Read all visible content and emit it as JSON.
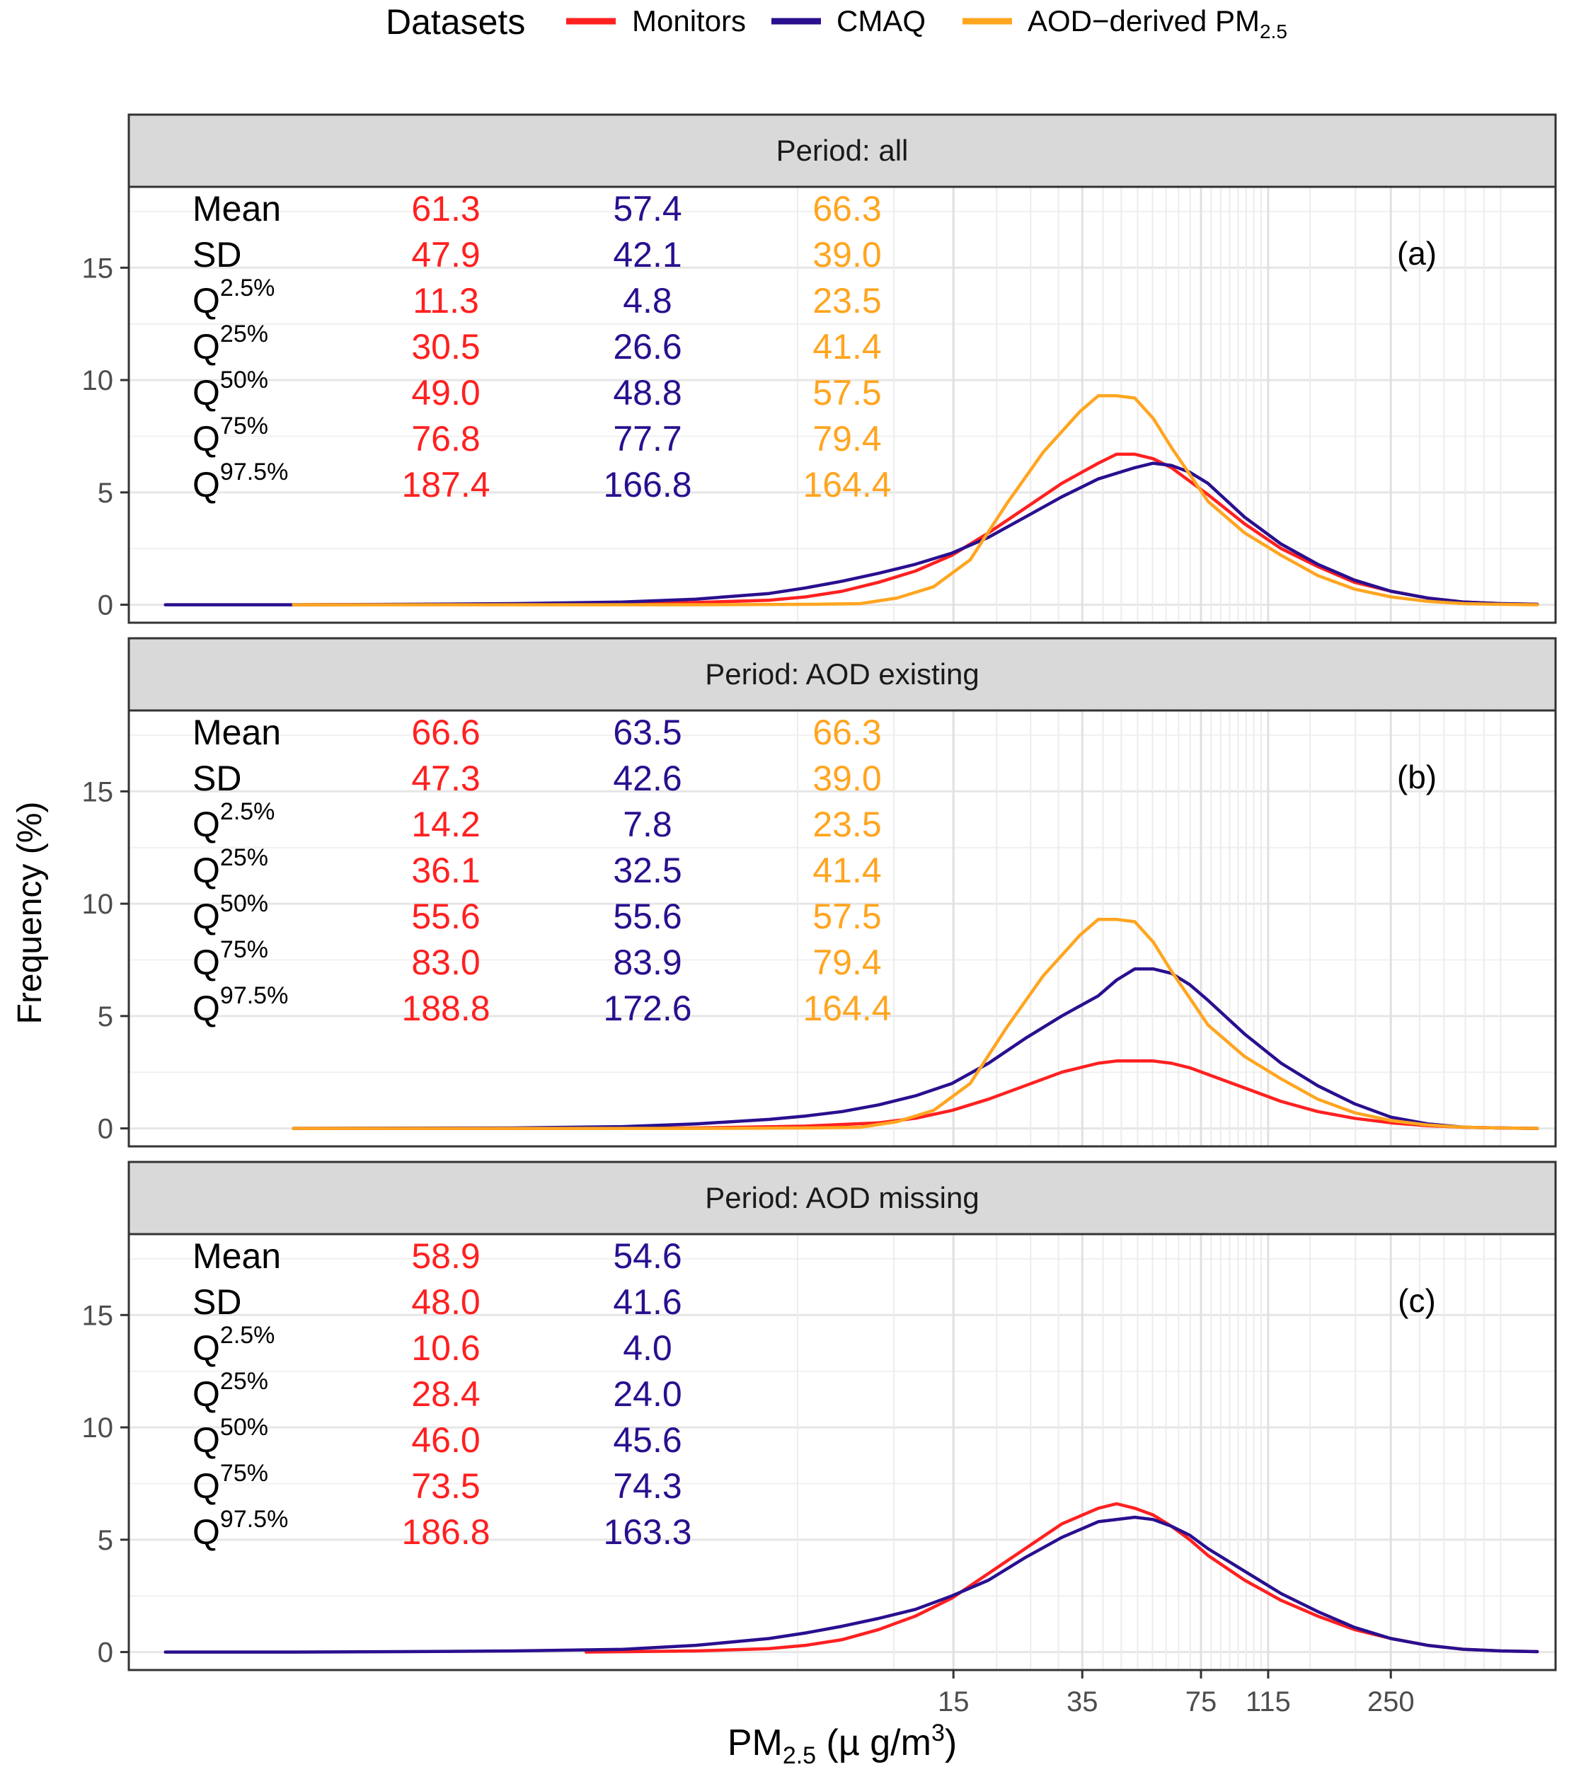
{
  "legend": {
    "title": "Datasets",
    "items": [
      {
        "label": "Monitors",
        "color": "#ff2020"
      },
      {
        "label": "CMAQ",
        "color": "#2a0f8f"
      },
      {
        "label": "AOD−derived PM",
        "sub": "2.5",
        "color": "#ffa520"
      }
    ]
  },
  "axis": {
    "ylabel": "Frequency (%)",
    "xlabel_main": "PM",
    "xlabel_sub": "2.5",
    "xlabel_unit": " (µ g/m",
    "xlabel_sup": "3",
    "xlabel_close": ")",
    "x_ticks": [
      15,
      35,
      75,
      115,
      250
    ],
    "x_tick_labels": [
      "15",
      "35",
      "75",
      "115",
      "250"
    ],
    "x_minor_grid": [
      5,
      10,
      20,
      25,
      30,
      40,
      45,
      50,
      55,
      60,
      65,
      70,
      80,
      85,
      90,
      95,
      100,
      105,
      110,
      150,
      200,
      300,
      350,
      400,
      450,
      500
    ],
    "y_ticks": [
      0,
      5,
      10,
      15
    ],
    "y_tick_labels": [
      "0",
      "5",
      "10",
      "15"
    ],
    "ylim": [
      -0.8,
      18.6
    ],
    "x_scale": "log10(PM2.5 + 1)",
    "x_range_log": [
      -1.05,
      2.85
    ]
  },
  "stat_labels": [
    {
      "base": "Mean",
      "sup": ""
    },
    {
      "base": "SD",
      "sup": ""
    },
    {
      "base": "Q",
      "sup": "2.5%"
    },
    {
      "base": "Q",
      "sup": "25%"
    },
    {
      "base": "Q",
      "sup": "50%"
    },
    {
      "base": "Q",
      "sup": "75%"
    },
    {
      "base": "Q",
      "sup": "97.5%"
    }
  ],
  "chart_data": {
    "type": "line",
    "x_transform": "log10(PM2.5 + 1)",
    "panels": [
      {
        "strip": "Period: all",
        "tag": "(a)",
        "stats": {
          "Monitors": [
            "61.3",
            "47.9",
            "11.3",
            "30.5",
            "49.0",
            "76.8",
            "187.4"
          ],
          "CMAQ": [
            "57.4",
            "42.1",
            "4.8",
            "26.6",
            "48.8",
            "77.7",
            "166.8"
          ],
          "AOD": [
            "66.3",
            "39.0",
            "23.5",
            "41.4",
            "57.5",
            "79.4",
            "164.4"
          ]
        },
        "series": [
          {
            "name": "Monitors",
            "x": [
              -0.6,
              -0.2,
              0.2,
              0.5,
              0.7,
              0.8,
              0.9,
              1.0,
              1.1,
              1.2,
              1.3,
              1.4,
              1.5,
              1.6,
              1.65,
              1.7,
              1.75,
              1.8,
              1.85,
              1.9,
              2.0,
              2.1,
              2.2,
              2.3,
              2.4,
              2.5,
              2.6,
              2.7,
              2.8
            ],
            "y": [
              0.0,
              0.02,
              0.05,
              0.1,
              0.2,
              0.35,
              0.6,
              1.0,
              1.5,
              2.2,
              3.2,
              4.3,
              5.4,
              6.3,
              6.7,
              6.7,
              6.5,
              6.1,
              5.5,
              4.9,
              3.6,
              2.5,
              1.7,
              1.0,
              0.6,
              0.3,
              0.12,
              0.05,
              0.02
            ]
          },
          {
            "name": "CMAQ",
            "x": [
              -0.95,
              -0.6,
              -0.3,
              0.0,
              0.3,
              0.5,
              0.7,
              0.8,
              0.9,
              1.0,
              1.1,
              1.2,
              1.3,
              1.4,
              1.5,
              1.6,
              1.7,
              1.75,
              1.8,
              1.85,
              1.9,
              2.0,
              2.1,
              2.2,
              2.3,
              2.4,
              2.5,
              2.6,
              2.7,
              2.8
            ],
            "y": [
              0.0,
              0.0,
              0.02,
              0.05,
              0.12,
              0.25,
              0.5,
              0.75,
              1.05,
              1.4,
              1.8,
              2.3,
              3.0,
              3.9,
              4.8,
              5.6,
              6.1,
              6.3,
              6.2,
              5.9,
              5.4,
              3.9,
              2.7,
              1.8,
              1.1,
              0.6,
              0.3,
              0.12,
              0.05,
              0.02
            ]
          },
          {
            "name": "AOD",
            "x": [
              -0.6,
              0.0,
              0.5,
              0.8,
              0.95,
              1.05,
              1.15,
              1.25,
              1.35,
              1.45,
              1.55,
              1.6,
              1.65,
              1.7,
              1.75,
              1.8,
              1.85,
              1.9,
              2.0,
              2.1,
              2.2,
              2.3,
              2.4,
              2.5,
              2.6,
              2.7,
              2.8
            ],
            "y": [
              0.0,
              0.0,
              0.0,
              0.02,
              0.05,
              0.3,
              0.8,
              2.0,
              4.5,
              6.8,
              8.6,
              9.3,
              9.3,
              9.2,
              8.3,
              7.0,
              5.8,
              4.6,
              3.2,
              2.2,
              1.3,
              0.7,
              0.35,
              0.15,
              0.05,
              0.02,
              0.0
            ]
          }
        ]
      },
      {
        "strip": "Period: AOD existing",
        "tag": "(b)",
        "stats": {
          "Monitors": [
            "66.6",
            "47.3",
            "14.2",
            "36.1",
            "55.6",
            "83.0",
            "188.8"
          ],
          "CMAQ": [
            "63.5",
            "42.6",
            "7.8",
            "32.5",
            "55.6",
            "83.9",
            "172.6"
          ],
          "AOD": [
            "66.3",
            "39.0",
            "23.5",
            "41.4",
            "57.5",
            "79.4",
            "164.4"
          ]
        },
        "series": [
          {
            "name": "Monitors",
            "x": [
              -0.6,
              0.0,
              0.5,
              0.8,
              1.0,
              1.1,
              1.2,
              1.3,
              1.4,
              1.5,
              1.6,
              1.65,
              1.7,
              1.75,
              1.8,
              1.85,
              1.9,
              2.0,
              2.1,
              2.2,
              2.3,
              2.4,
              2.5,
              2.6,
              2.7,
              2.8
            ],
            "y": [
              0.0,
              0.0,
              0.02,
              0.1,
              0.25,
              0.45,
              0.8,
              1.3,
              1.9,
              2.5,
              2.9,
              3.0,
              3.0,
              3.0,
              2.9,
              2.7,
              2.4,
              1.8,
              1.2,
              0.75,
              0.45,
              0.25,
              0.12,
              0.05,
              0.02,
              0.0
            ]
          },
          {
            "name": "CMAQ",
            "x": [
              -0.6,
              0.0,
              0.3,
              0.5,
              0.7,
              0.8,
              0.9,
              1.0,
              1.1,
              1.2,
              1.3,
              1.4,
              1.5,
              1.6,
              1.65,
              1.7,
              1.75,
              1.8,
              1.85,
              1.9,
              2.0,
              2.1,
              2.2,
              2.3,
              2.4,
              2.5,
              2.6,
              2.7,
              2.8
            ],
            "y": [
              0.0,
              0.02,
              0.08,
              0.2,
              0.4,
              0.55,
              0.75,
              1.05,
              1.45,
              2.0,
              2.9,
              4.0,
              5.0,
              5.9,
              6.6,
              7.1,
              7.1,
              6.9,
              6.4,
              5.7,
              4.2,
              2.9,
              1.9,
              1.1,
              0.5,
              0.2,
              0.05,
              0.02,
              0.0
            ]
          },
          {
            "name": "AOD",
            "x": [
              -0.6,
              0.0,
              0.5,
              0.8,
              0.95,
              1.05,
              1.15,
              1.25,
              1.35,
              1.45,
              1.55,
              1.6,
              1.65,
              1.7,
              1.75,
              1.8,
              1.85,
              1.9,
              2.0,
              2.1,
              2.2,
              2.3,
              2.4,
              2.5,
              2.6,
              2.7,
              2.8
            ],
            "y": [
              0.0,
              0.0,
              0.0,
              0.02,
              0.05,
              0.3,
              0.8,
              2.0,
              4.5,
              6.8,
              8.6,
              9.3,
              9.3,
              9.2,
              8.3,
              7.0,
              5.8,
              4.6,
              3.2,
              2.2,
              1.3,
              0.7,
              0.35,
              0.15,
              0.05,
              0.02,
              0.0
            ]
          }
        ]
      },
      {
        "strip": "Period: AOD missing",
        "tag": "(c)",
        "stats": {
          "Monitors": [
            "58.9",
            "48.0",
            "10.6",
            "28.4",
            "46.0",
            "73.5",
            "186.8"
          ],
          "CMAQ": [
            "54.6",
            "41.6",
            "4.0",
            "24.0",
            "45.6",
            "74.3",
            "163.3"
          ],
          "AOD": [
            "",
            "",
            "",
            "",
            "",
            "",
            ""
          ]
        },
        "series": [
          {
            "name": "Monitors",
            "x": [
              0.2,
              0.5,
              0.7,
              0.8,
              0.9,
              1.0,
              1.1,
              1.2,
              1.3,
              1.4,
              1.5,
              1.6,
              1.65,
              1.7,
              1.75,
              1.8,
              1.85,
              1.9,
              2.0,
              2.1,
              2.2,
              2.3,
              2.4,
              2.5,
              2.6,
              2.7,
              2.8
            ],
            "y": [
              0.0,
              0.05,
              0.15,
              0.3,
              0.55,
              1.0,
              1.6,
              2.4,
              3.5,
              4.6,
              5.7,
              6.4,
              6.6,
              6.4,
              6.1,
              5.6,
              5.0,
              4.3,
              3.2,
              2.3,
              1.6,
              1.0,
              0.6,
              0.3,
              0.12,
              0.05,
              0.02
            ]
          },
          {
            "name": "CMAQ",
            "x": [
              -0.95,
              -0.6,
              -0.3,
              0.0,
              0.3,
              0.5,
              0.7,
              0.8,
              0.9,
              1.0,
              1.1,
              1.2,
              1.3,
              1.4,
              1.5,
              1.6,
              1.7,
              1.75,
              1.8,
              1.85,
              1.9,
              2.0,
              2.1,
              2.2,
              2.3,
              2.4,
              2.5,
              2.6,
              2.7,
              2.8
            ],
            "y": [
              0.0,
              0.0,
              0.02,
              0.05,
              0.12,
              0.3,
              0.6,
              0.85,
              1.15,
              1.5,
              1.9,
              2.5,
              3.2,
              4.2,
              5.1,
              5.8,
              6.0,
              5.9,
              5.6,
              5.2,
              4.6,
              3.6,
              2.6,
              1.8,
              1.1,
              0.6,
              0.3,
              0.12,
              0.05,
              0.02
            ]
          }
        ]
      }
    ]
  }
}
